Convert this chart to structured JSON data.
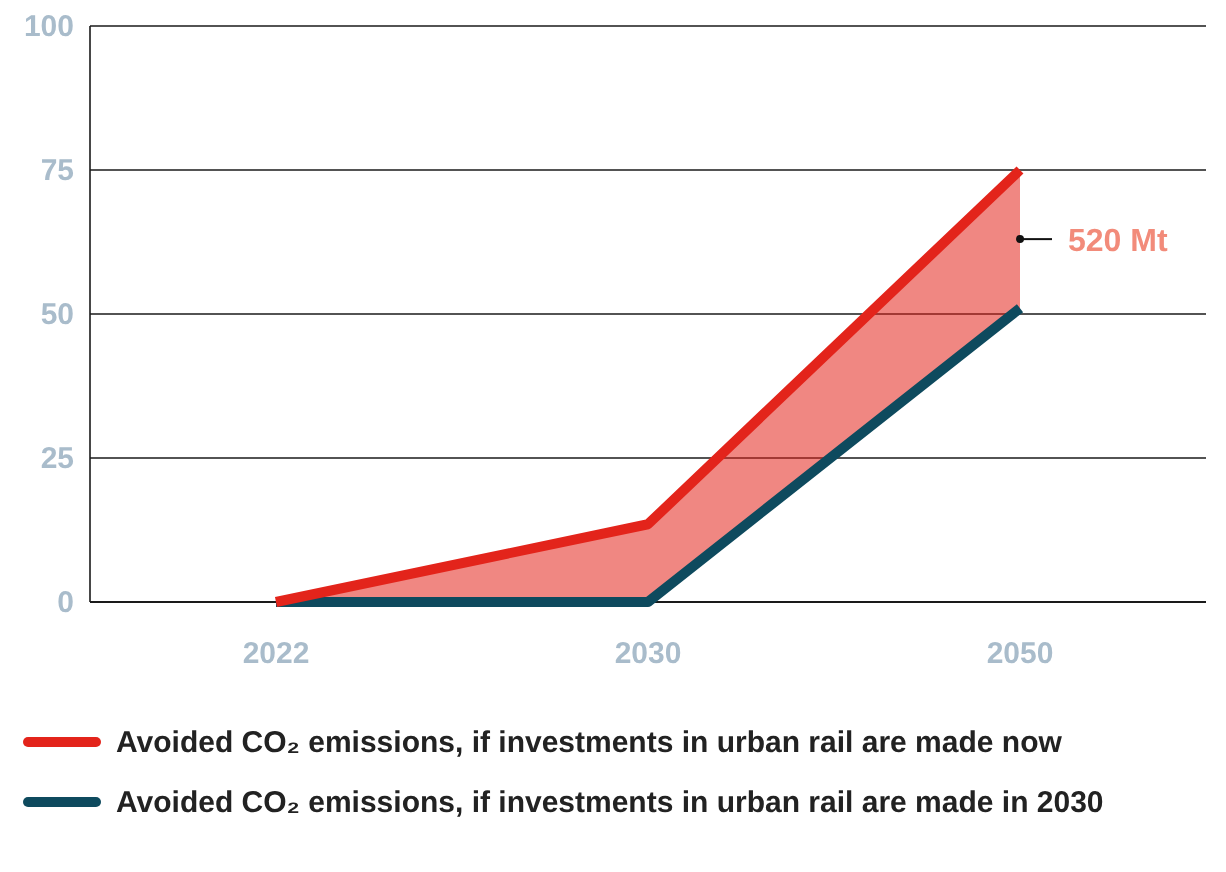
{
  "chart_data": {
    "type": "line",
    "categories": [
      "2022",
      "2030",
      "2050"
    ],
    "series": [
      {
        "name": "Avoided CO₂ emissions, if investments in urban rail are made now",
        "color": "#e3241b",
        "values": [
          0,
          13.5,
          75
        ],
        "lower": [
          0,
          0,
          51
        ],
        "upper": [
          0,
          13.5,
          75
        ]
      },
      {
        "name": "Avoided CO₂ emissions, if investments in urban rail are made in 2030",
        "color": "#0e4a5e",
        "values": [
          0,
          0,
          51
        ]
      }
    ],
    "ylim": [
      0,
      100
    ],
    "yticks": [
      0,
      25,
      50,
      75,
      100
    ],
    "grid": "y",
    "legend": "bottom",
    "marker": "none",
    "line_style": "solid",
    "annotations": [
      {
        "text": "520 Mt",
        "x": "2050",
        "y": 63
      }
    ]
  }
}
